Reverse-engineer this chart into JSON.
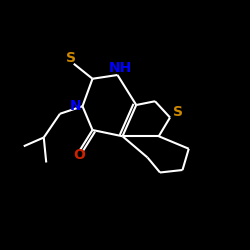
{
  "background_color": "#000000",
  "bond_color": "#ffffff",
  "atom_colors": {
    "S": "#cc8800",
    "N": "#0000ff",
    "O": "#cc2200"
  },
  "figsize": [
    2.5,
    2.5
  ],
  "dpi": 100,
  "lw": 1.5,
  "fontsize": 10
}
